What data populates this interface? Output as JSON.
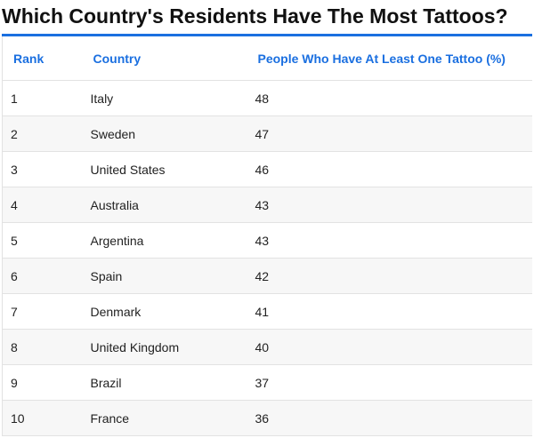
{
  "title": "Which Country's Residents Have The Most Tattoos?",
  "table": {
    "header": [
      "Rank",
      "Country",
      "People Who Have At Least One Tattoo (%)"
    ],
    "rows": [
      [
        1,
        "Italy",
        48
      ],
      [
        2,
        "Sweden",
        47
      ],
      [
        3,
        "United States",
        46
      ],
      [
        4,
        "Australia",
        43
      ],
      [
        5,
        "Argentina",
        43
      ],
      [
        6,
        "Spain",
        42
      ],
      [
        7,
        "Denmark",
        41
      ],
      [
        8,
        "United Kingdom",
        40
      ],
      [
        9,
        "Brazil",
        37
      ],
      [
        10,
        "France",
        36
      ]
    ]
  }
}
